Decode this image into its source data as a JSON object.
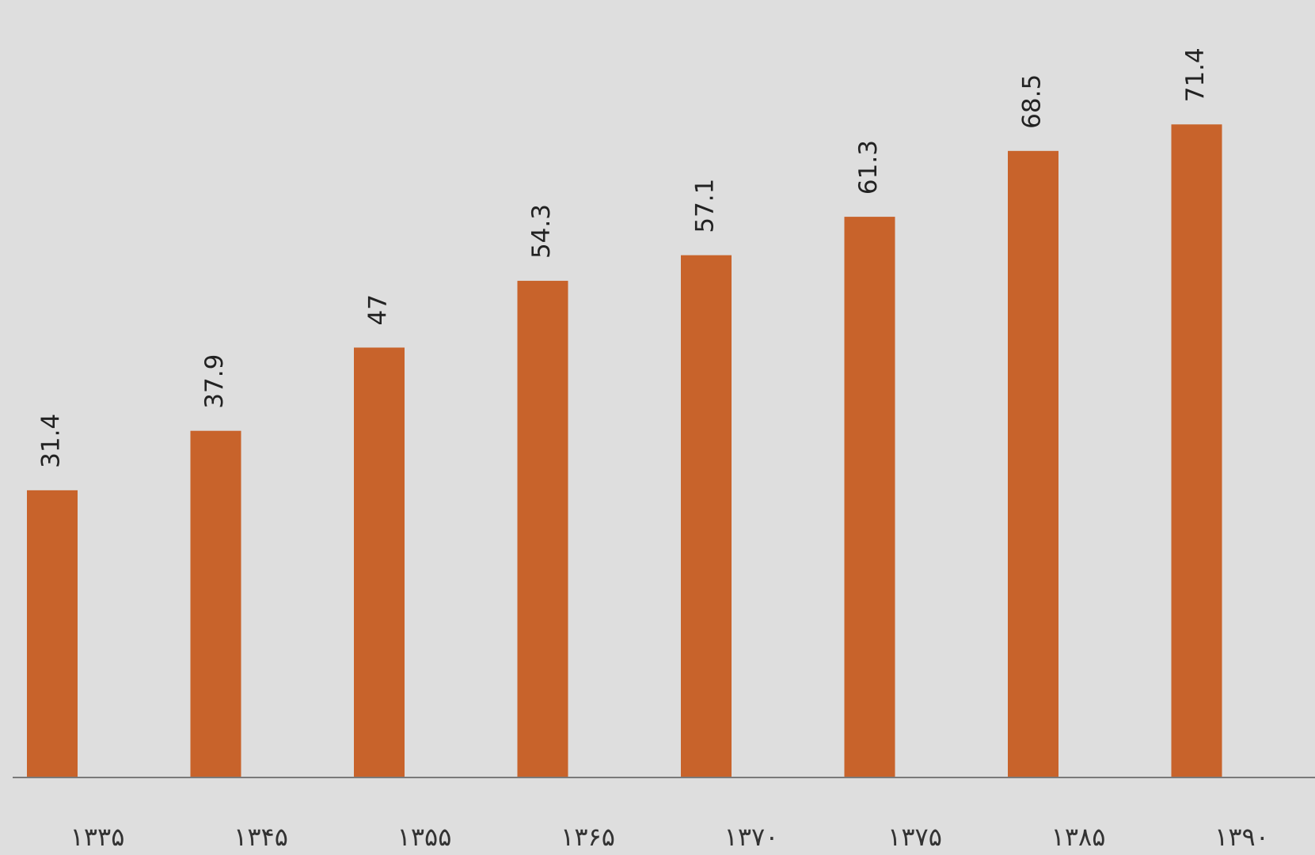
{
  "chart_data": {
    "type": "bar",
    "categories": [
      "۱۳۳۵",
      "۱۳۴۵",
      "۱۳۵۵",
      "۱۳۶۵",
      "۱۳۷۰",
      "۱۳۷۵",
      "۱۳۸۵",
      "۱۳۹۰"
    ],
    "values": [
      31.4,
      37.9,
      47,
      54.3,
      57.1,
      61.3,
      68.5,
      71.4
    ],
    "color": "#c8632b",
    "ylim": [
      0,
      85
    ]
  }
}
